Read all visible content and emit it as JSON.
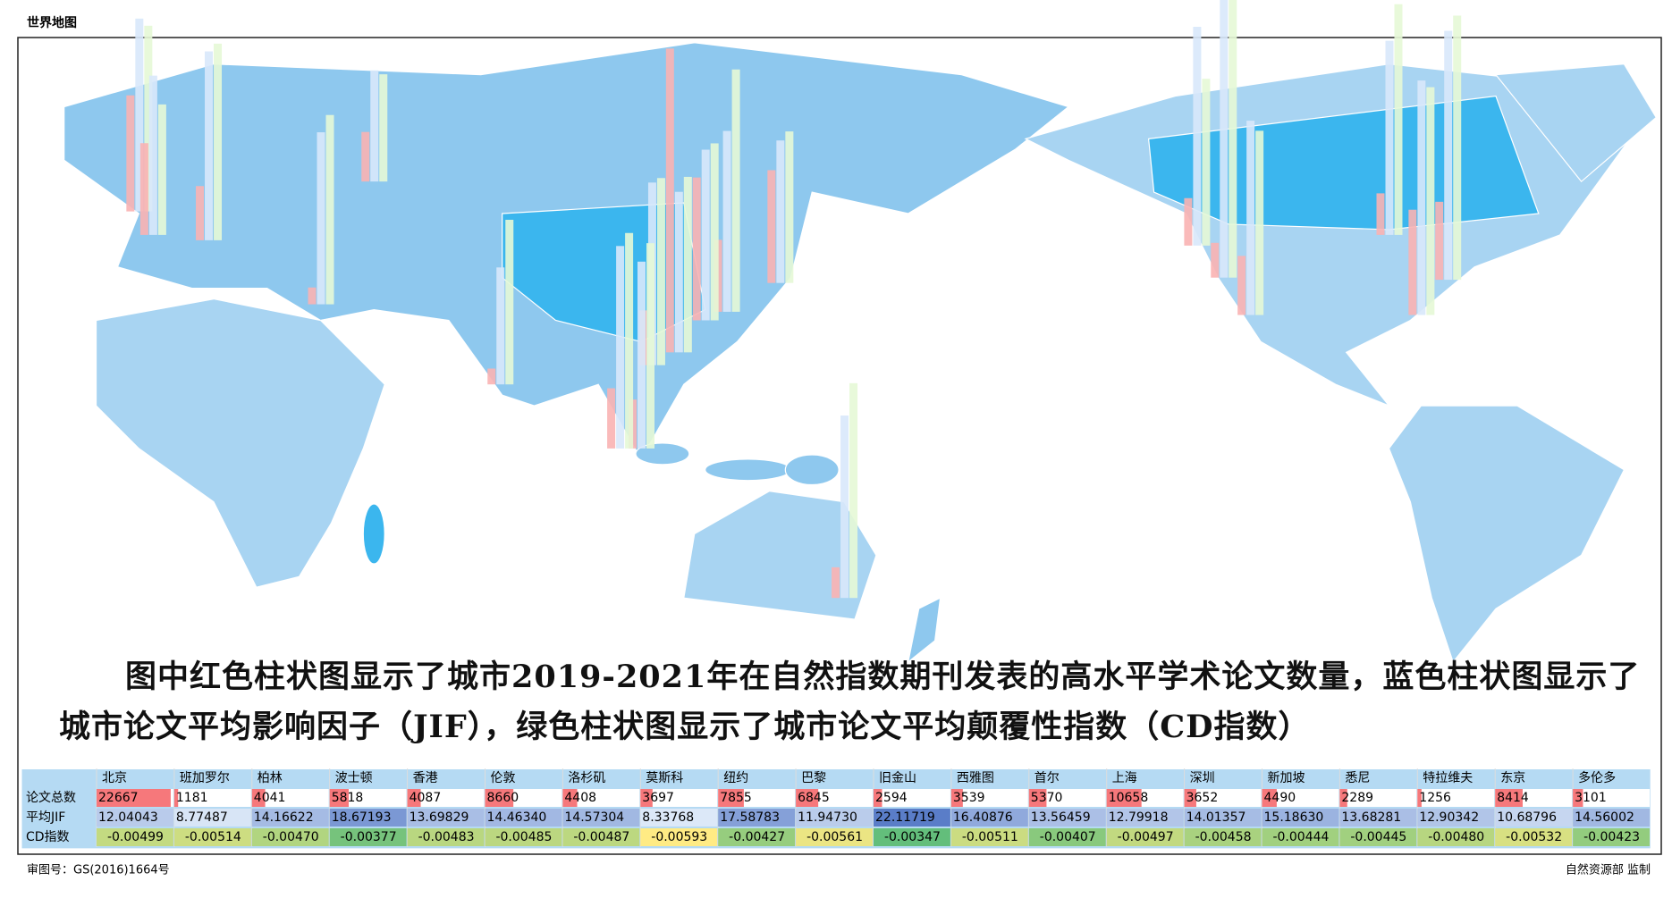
{
  "header": {
    "title": "世界地图"
  },
  "caption": "图中红色柱状图显示了城市2019-2021年在自然指数期刊发表的高水平学术论文数量，蓝色柱状图显示了城市论文平均影响因子（JIF），绿色柱状图显示了城市论文平均颠覆性指数（CD指数）",
  "table": {
    "columns": [
      "北京",
      "班加罗尔",
      "柏林",
      "波士顿",
      "香港",
      "伦敦",
      "洛杉矶",
      "莫斯科",
      "纽约",
      "巴黎",
      "旧金山",
      "西雅图",
      "首尔",
      "上海",
      "深圳",
      "新加坡",
      "悉尼",
      "特拉维夫",
      "东京",
      "多伦多"
    ],
    "rows": [
      {
        "label": "论文总数",
        "values": [
          22667,
          1181,
          4041,
          5818,
          4087,
          8660,
          4408,
          3697,
          7855,
          6845,
          2594,
          3539,
          5370,
          10658,
          3652,
          4490,
          2289,
          1256,
          8414,
          3101
        ]
      },
      {
        "label": "平均JIF",
        "values": [
          12.04043,
          8.77487,
          14.16622,
          18.67193,
          13.69829,
          14.4634,
          14.57304,
          8.33768,
          17.58783,
          11.9473,
          22.11719,
          16.40876,
          13.56459,
          12.79918,
          14.01357,
          15.1863,
          13.68281,
          12.90342,
          10.68796,
          14.56002
        ],
        "value_labels": [
          "12.04043",
          "8.77487",
          "14.16622",
          "18.67193",
          "13.69829",
          "14.46340",
          "14.57304",
          "8.33768",
          "17.58783",
          "11.94730",
          "22.11719",
          "16.40876",
          "13.56459",
          "12.79918",
          "14.01357",
          "15.18630",
          "13.68281",
          "12.90342",
          "10.68796",
          "14.56002"
        ]
      },
      {
        "label": "CD指数",
        "values": [
          -0.00499,
          -0.00514,
          -0.0047,
          -0.00377,
          -0.00483,
          -0.00485,
          -0.00487,
          -0.00593,
          -0.00427,
          -0.00561,
          -0.00347,
          -0.00511,
          -0.00407,
          -0.00497,
          -0.00458,
          -0.00444,
          -0.00445,
          -0.0048,
          -0.00532,
          -0.00423
        ],
        "value_labels": [
          "-0.00499",
          "-0.00514",
          "-0.00470",
          "-0.00377",
          "-0.00483",
          "-0.00485",
          "-0.00487",
          "-0.00593",
          "-0.00427",
          "-0.00561",
          "-0.00347",
          "-0.00511",
          "-0.00407",
          "-0.00497",
          "-0.00458",
          "-0.00444",
          "-0.00445",
          "-0.00480",
          "-0.00532",
          "-0.00423"
        ]
      }
    ]
  },
  "footer": {
    "approval": "审图号：GS(2016)1664号",
    "publisher": "自然资源部 监制"
  }
}
